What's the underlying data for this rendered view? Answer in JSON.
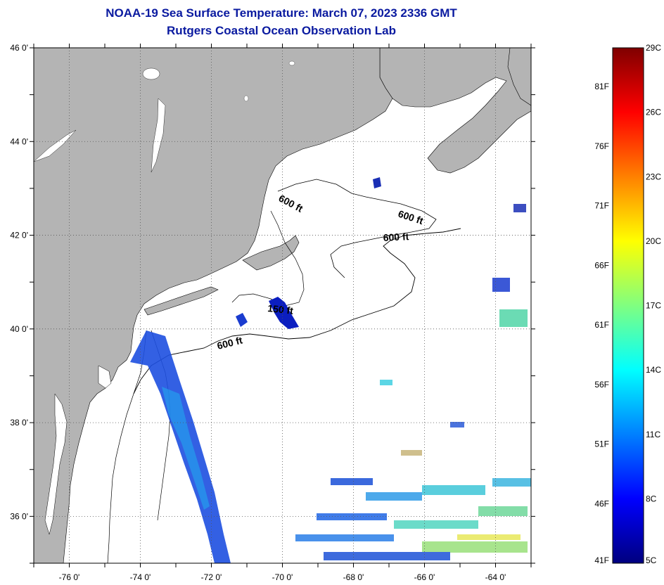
{
  "title": "NOAA-19 Sea Surface Temperature:  March 07, 2023 2336 GMT",
  "subtitle": "Rutgers Coastal Ocean Observation Lab",
  "map": {
    "lon_range": [
      -77,
      -63
    ],
    "lat_range": [
      35,
      46
    ],
    "x_ticks": [
      {
        "value": -76,
        "label": "-76 0'"
      },
      {
        "value": -74,
        "label": "-74 0'"
      },
      {
        "value": -72,
        "label": "-72 0'"
      },
      {
        "value": -70,
        "label": "-70 0'"
      },
      {
        "value": -68,
        "label": "-68 0'"
      },
      {
        "value": -66,
        "label": "-66 0'"
      },
      {
        "value": -64,
        "label": "-64 0'"
      }
    ],
    "y_ticks": [
      {
        "value": 46,
        "label": "46 0'"
      },
      {
        "value": 44,
        "label": "44 0'"
      },
      {
        "value": 42,
        "label": "42 0'"
      },
      {
        "value": 40,
        "label": "40 0'"
      },
      {
        "value": 38,
        "label": "38 0'"
      },
      {
        "value": 36,
        "label": "36 0'"
      }
    ],
    "contour_labels": [
      "600 ft",
      "600 ft",
      "600 ft",
      "150 ft",
      "600 ft"
    ],
    "land_color": "#b4b4b4",
    "ocean_color": "#ffffff"
  },
  "colorbar": {
    "celsius_labels": [
      "29C",
      "26C",
      "23C",
      "20C",
      "17C",
      "14C",
      "11C",
      "8C",
      "5C"
    ],
    "fahrenheit_labels": [
      "81F",
      "76F",
      "71F",
      "66F",
      "61F",
      "56F",
      "51F",
      "46F",
      "41F"
    ],
    "range_c": [
      5,
      29
    ],
    "colors": [
      "#00007f",
      "#0000ff",
      "#0080ff",
      "#00ffff",
      "#80ff80",
      "#ffff00",
      "#ff8000",
      "#ff0000",
      "#7f0000"
    ]
  }
}
